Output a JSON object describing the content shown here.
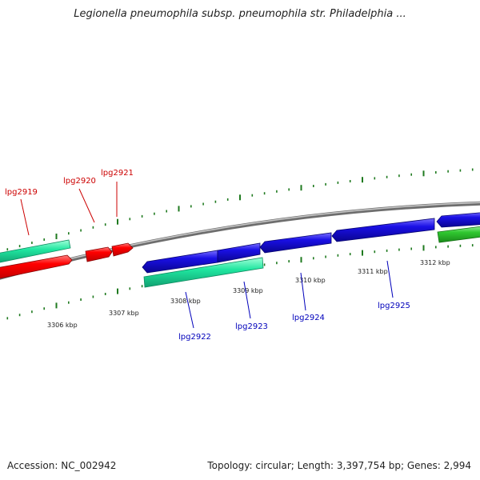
{
  "header": {
    "title": "Legionella pneumophila subsp. pneumophila str. Philadelphia ..."
  },
  "footer": {
    "accession": "Accession: NC_002942",
    "summary": "Topology: circular; Length: 3,397,754 bp; Genes: 2,994"
  },
  "colors": {
    "backbone": "#8a8a8a",
    "tick": "#1f7a1f",
    "forward_label": "#cc0000",
    "reverse_label": "#0000bb",
    "gene_red": "#ff0000",
    "gene_blue": "#1a10e6",
    "gene_teal": "#20e6a0",
    "gene_green": "#30c830"
  },
  "scale": {
    "unit": "kbp",
    "ticks": [
      {
        "value": 3306,
        "label": "3306 kbp"
      },
      {
        "value": 3307,
        "label": "3307 kbp"
      },
      {
        "value": 3308,
        "label": "3308 kbp"
      },
      {
        "value": 3309,
        "label": "3309 kbp"
      },
      {
        "value": 3310,
        "label": "3310 kbp"
      },
      {
        "value": 3311,
        "label": "3311 kbp"
      },
      {
        "value": 3312,
        "label": "3312 kbp"
      }
    ]
  },
  "genes": [
    {
      "name": "lpg2919",
      "color": "#ff0000"
    },
    {
      "name": "lpg2920",
      "color": "#ff0000"
    },
    {
      "name": "lpg2921",
      "color": "#ff0000"
    },
    {
      "name": "lpg2922",
      "color": "#1a10e6"
    },
    {
      "name": "lpg2923",
      "color": "#1a10e6"
    },
    {
      "name": "lpg2924",
      "color": "#1a10e6"
    },
    {
      "name": "lpg2925",
      "color": "#1a10e6"
    }
  ]
}
